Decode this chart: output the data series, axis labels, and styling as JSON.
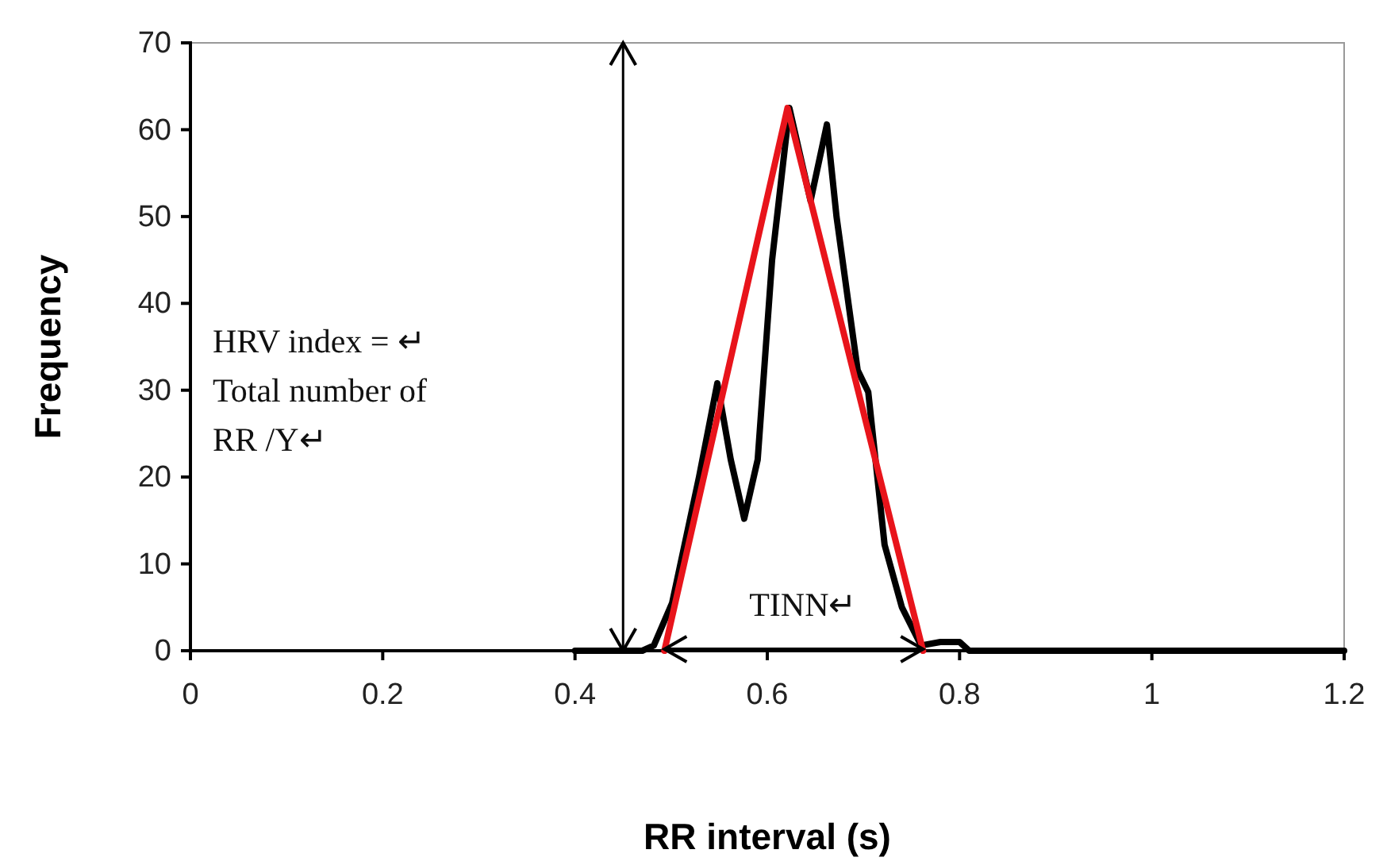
{
  "chart_data": {
    "type": "line",
    "xlabel": "RR interval (s)",
    "ylabel": "Frequency",
    "xlim": [
      0,
      1.2
    ],
    "xticks": [
      0,
      0.2,
      0.4,
      0.6,
      0.8,
      1,
      1.2
    ],
    "ylim": [
      0,
      70
    ],
    "yticks": [
      0,
      10,
      20,
      30,
      40,
      50,
      60,
      70
    ],
    "grid": false,
    "marker": "none",
    "line_style": "solid",
    "series": [
      {
        "color": "#000000",
        "x": [
          0.4,
          0.47,
          0.482,
          0.501,
          0.529,
          0.548,
          0.562,
          0.576,
          0.59,
          0.605,
          0.623,
          0.645,
          0.662,
          0.672,
          0.694,
          0.705,
          0.722,
          0.74,
          0.76,
          0.78,
          0.8,
          0.81,
          1.0,
          1.2
        ],
        "values": [
          0,
          0,
          0.6,
          5.5,
          20,
          30.8,
          22,
          15.2,
          22,
          45,
          62.5,
          51.8,
          60.6,
          50,
          32.3,
          29.8,
          12.2,
          5,
          0.6,
          1,
          1,
          0,
          0,
          0
        ]
      },
      {
        "color": "#e8141b",
        "x": [
          0.493,
          0.621,
          0.762
        ],
        "values": [
          0,
          62.5,
          0
        ]
      }
    ],
    "ref_lines": [
      {
        "axis": "x",
        "value": 0.45,
        "label": "HRV index = ↵\nTotal number of\nRR /Y↵",
        "color": "#000000"
      }
    ],
    "annotations": [
      "TINN↵"
    ]
  }
}
